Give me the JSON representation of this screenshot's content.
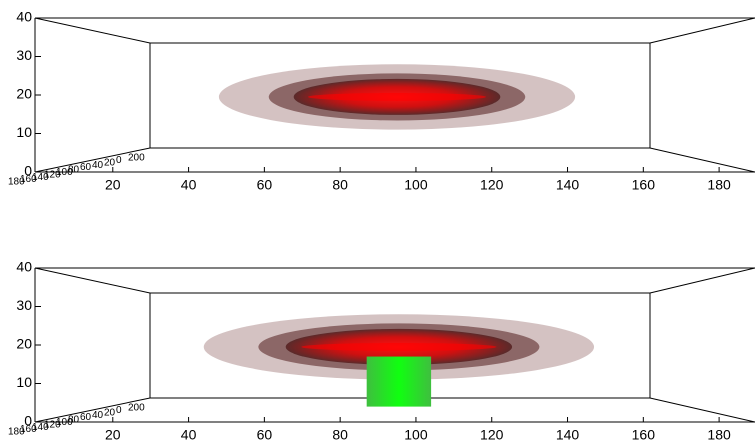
{
  "chart_data": [
    {
      "type": "volume",
      "xlim": [
        0,
        190
      ],
      "xticks": [
        20,
        40,
        60,
        80,
        100,
        120,
        140,
        160,
        180
      ],
      "ylim": [
        0,
        40
      ],
      "yticks": [
        0,
        10,
        20,
        30,
        40
      ],
      "zticks": [
        180,
        160,
        140,
        120,
        100,
        80,
        60,
        40,
        20,
        0,
        200
      ],
      "volumes": [
        {
          "shape": "ellipsoid",
          "color": "#ff0000",
          "x": [
            48,
            142
          ],
          "y": [
            11,
            28
          ]
        }
      ]
    },
    {
      "type": "volume",
      "xlim": [
        0,
        190
      ],
      "xticks": [
        20,
        40,
        60,
        80,
        100,
        120,
        140,
        160,
        180
      ],
      "ylim": [
        0,
        40
      ],
      "yticks": [
        0,
        10,
        20,
        30,
        40
      ],
      "zticks": [
        180,
        160,
        140,
        120,
        100,
        80,
        60,
        40,
        20,
        0,
        200
      ],
      "volumes": [
        {
          "shape": "ellipsoid",
          "color": "#ff0000",
          "x": [
            44,
            147
          ],
          "y": [
            11,
            28
          ]
        },
        {
          "shape": "box",
          "color": "#00ff00",
          "x": [
            87,
            104
          ],
          "y": [
            4,
            17
          ]
        }
      ]
    }
  ]
}
